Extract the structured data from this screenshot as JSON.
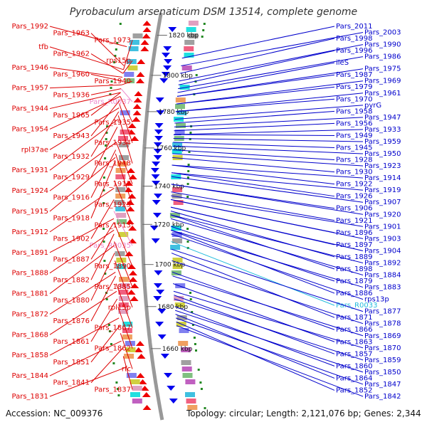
{
  "title": "Pyrobaculum arsenaticum DSM 13514, complete genome",
  "footer": {
    "accession": "Accession: NC_009376",
    "summary": "Topology: circular; Length: 2,121,076 bp; Genes: 2,344"
  },
  "colors": {
    "left_label": "#dd0000",
    "right_label": "#0000cc",
    "rna_left": "#ee88cc",
    "rna_right": "#22bbdd",
    "backbone": "#999999",
    "forward_arrow": "#ee0000",
    "reverse_arrow": "#0000ee",
    "tick_dot": "#228822"
  },
  "kbp_markers": [
    {
      "label": "1820 kbp",
      "pos": 0.04
    },
    {
      "label": "1800 kbp",
      "pos": 0.145
    },
    {
      "label": "1780 kbp",
      "pos": 0.24
    },
    {
      "label": "1760 kbp",
      "pos": 0.335
    },
    {
      "label": "1740 kbp",
      "pos": 0.435
    },
    {
      "label": "1720 kbp",
      "pos": 0.535
    },
    {
      "label": "1700 kbp",
      "pos": 0.64
    },
    {
      "label": "1680 kbp",
      "pos": 0.75
    },
    {
      "label": "1660 kbp",
      "pos": 0.86
    }
  ],
  "left_genes": [
    {
      "name": "Pars_1992",
      "t": 0.07,
      "type": "gene"
    },
    {
      "name": "Pars_1963",
      "t": 0.12,
      "type": "gene"
    },
    {
      "name": "Pars_1973",
      "t": 0.13,
      "type": "gene"
    },
    {
      "name": "tfb",
      "t": 0.13,
      "type": "gene"
    },
    {
      "name": "Pars_1962",
      "t": 0.14,
      "type": "gene"
    },
    {
      "name": "rps15p",
      "t": 0.14,
      "type": "gene"
    },
    {
      "name": "Pars_1946",
      "t": 0.15,
      "type": "gene"
    },
    {
      "name": "Pars_1960",
      "t": 0.16,
      "type": "gene"
    },
    {
      "name": "Pars_1940",
      "t": 0.17,
      "type": "gene"
    },
    {
      "name": "Pars_1957",
      "t": 0.17,
      "type": "gene"
    },
    {
      "name": "Pars_1936",
      "t": 0.18,
      "type": "gene"
    },
    {
      "name": "Pars_R0037",
      "t": 0.18,
      "type": "rna"
    },
    {
      "name": "Pars_1944",
      "t": 0.19,
      "type": "gene"
    },
    {
      "name": "Pars_1965",
      "t": 0.19,
      "type": "gene"
    },
    {
      "name": "Pars_1935",
      "t": 0.2,
      "type": "gene"
    },
    {
      "name": "Pars_1954",
      "t": 0.2,
      "type": "gene"
    },
    {
      "name": "Pars_1943",
      "t": 0.21,
      "type": "gene"
    },
    {
      "name": "Pars_1934",
      "t": 0.22,
      "type": "gene"
    },
    {
      "name": "rpl37ae",
      "t": 0.23,
      "type": "gene"
    },
    {
      "name": "Pars_1932",
      "t": 0.24,
      "type": "gene"
    },
    {
      "name": "Pars_1948",
      "t": 0.25,
      "type": "gene"
    },
    {
      "name": "Pars_1931",
      "t": 0.26,
      "type": "gene"
    },
    {
      "name": "Pars_1929",
      "t": 0.28,
      "type": "gene"
    },
    {
      "name": "Pars_1917",
      "t": 0.32,
      "type": "gene"
    },
    {
      "name": "Pars_1924",
      "t": 0.32,
      "type": "gene"
    },
    {
      "name": "Pars_1916",
      "t": 0.34,
      "type": "gene"
    },
    {
      "name": "Pars_1925",
      "t": 0.35,
      "type": "gene"
    },
    {
      "name": "Pars_1915",
      "t": 0.36,
      "type": "gene"
    },
    {
      "name": "Pars_1918",
      "t": 0.37,
      "type": "gene"
    },
    {
      "name": "Pars_1913",
      "t": 0.42,
      "type": "gene"
    },
    {
      "name": "Pars_1912",
      "t": 0.44,
      "type": "gene"
    },
    {
      "name": "Pars_1902",
      "t": 0.47,
      "type": "gene"
    },
    {
      "name": "Pars_R0035",
      "t": 0.5,
      "type": "rna"
    },
    {
      "name": "Pars_1891",
      "t": 0.52,
      "type": "gene"
    },
    {
      "name": "Pars_1887",
      "t": 0.53,
      "type": "gene"
    },
    {
      "name": "Pars_1890",
      "t": 0.53,
      "type": "gene"
    },
    {
      "name": "Pars_1888",
      "t": 0.55,
      "type": "gene"
    },
    {
      "name": "Pars_1882",
      "t": 0.56,
      "type": "gene"
    },
    {
      "name": "Pars_1885",
      "t": 0.58,
      "type": "gene"
    },
    {
      "name": "Pars_1881",
      "t": 0.59,
      "type": "gene"
    },
    {
      "name": "Pars_1880",
      "t": 0.61,
      "type": "gene"
    },
    {
      "name": "rpl15p",
      "t": 0.63,
      "type": "gene"
    },
    {
      "name": "Pars_1872",
      "t": 0.66,
      "type": "gene"
    },
    {
      "name": "Pars_1876",
      "t": 0.67,
      "type": "gene"
    },
    {
      "name": "Pars_1867",
      "t": 0.69,
      "type": "gene"
    },
    {
      "name": "Pars_1868",
      "t": 0.71,
      "type": "gene"
    },
    {
      "name": "Pars_1861",
      "t": 0.73,
      "type": "gene"
    },
    {
      "name": "Pars_1862",
      "t": 0.75,
      "type": "gene"
    },
    {
      "name": "Pars_1858",
      "t": 0.78,
      "type": "gene"
    },
    {
      "name": "Pars_1851",
      "t": 0.8,
      "type": "gene"
    },
    {
      "name": "rfc",
      "t": 0.82,
      "type": "gene"
    },
    {
      "name": "Pars_1844",
      "t": 0.84,
      "type": "gene"
    },
    {
      "name": "Pars_1841",
      "t": 0.86,
      "type": "gene"
    },
    {
      "name": "Pars_1837",
      "t": 0.88,
      "type": "gene"
    },
    {
      "name": "Pars_1831",
      "t": 0.91,
      "type": "gene"
    }
  ],
  "right_genes": [
    {
      "name": "Pars_2011",
      "t": 0.1,
      "type": "gene"
    },
    {
      "name": "Pars_2003",
      "t": 0.12,
      "type": "gene"
    },
    {
      "name": "Pars_1998",
      "t": 0.14,
      "type": "gene"
    },
    {
      "name": "Pars_1990",
      "t": 0.16,
      "type": "gene"
    },
    {
      "name": "Pars_1996",
      "t": 0.17,
      "type": "gene"
    },
    {
      "name": "Pars_1986",
      "t": 0.18,
      "type": "gene"
    },
    {
      "name": "ileS",
      "t": 0.19,
      "type": "gene"
    },
    {
      "name": "Pars_1975",
      "t": 0.2,
      "type": "gene"
    },
    {
      "name": "Pars_1987",
      "t": 0.2,
      "type": "gene"
    },
    {
      "name": "Pars_1969",
      "t": 0.22,
      "type": "gene"
    },
    {
      "name": "Pars_1979",
      "t": 0.22,
      "type": "gene"
    },
    {
      "name": "Pars_1961",
      "t": 0.24,
      "type": "gene"
    },
    {
      "name": "Pars_1970",
      "t": 0.24,
      "type": "gene"
    },
    {
      "name": "pyrG",
      "t": 0.26,
      "type": "gene"
    },
    {
      "name": "Pars_1958",
      "t": 0.27,
      "type": "gene"
    },
    {
      "name": "Pars_1947",
      "t": 0.28,
      "type": "gene"
    },
    {
      "name": "Pars_1956",
      "t": 0.29,
      "type": "gene"
    },
    {
      "name": "Pars_1933",
      "t": 0.3,
      "type": "gene"
    },
    {
      "name": "Pars_1949",
      "t": 0.3,
      "type": "gene"
    },
    {
      "name": "Pars_1959",
      "t": 0.31,
      "type": "gene"
    },
    {
      "name": "Pars_1945",
      "t": 0.32,
      "type": "gene"
    },
    {
      "name": "Pars_1950",
      "t": 0.33,
      "type": "gene"
    },
    {
      "name": "Pars_1928",
      "t": 0.34,
      "type": "gene"
    },
    {
      "name": "Pars_1923",
      "t": 0.35,
      "type": "gene"
    },
    {
      "name": "Pars_1930",
      "t": 0.36,
      "type": "gene"
    },
    {
      "name": "Pars_1914",
      "t": 0.38,
      "type": "gene"
    },
    {
      "name": "Pars_1922",
      "t": 0.38,
      "type": "gene"
    },
    {
      "name": "Pars_1919",
      "t": 0.4,
      "type": "gene"
    },
    {
      "name": "Pars_1926",
      "t": 0.4,
      "type": "gene"
    },
    {
      "name": "Pars_1907",
      "t": 0.41,
      "type": "gene"
    },
    {
      "name": "Pars_1906",
      "t": 0.43,
      "type": "gene"
    },
    {
      "name": "Pars_1920",
      "t": 0.43,
      "type": "gene"
    },
    {
      "name": "Pars_1921",
      "t": 0.45,
      "type": "gene"
    },
    {
      "name": "Pars_1901",
      "t": 0.46,
      "type": "gene"
    },
    {
      "name": "Pars_1896",
      "t": 0.47,
      "type": "gene"
    },
    {
      "name": "Pars_1903",
      "t": 0.47,
      "type": "gene"
    },
    {
      "name": "Pars_1897",
      "t": 0.49,
      "type": "gene"
    },
    {
      "name": "Pars_1904",
      "t": 0.49,
      "type": "gene"
    },
    {
      "name": "Pars_1889",
      "t": 0.5,
      "type": "gene"
    },
    {
      "name": "Pars_1892",
      "t": 0.51,
      "type": "gene"
    },
    {
      "name": "Pars_1898",
      "t": 0.51,
      "type": "gene"
    },
    {
      "name": "Pars_1884",
      "t": 0.52,
      "type": "gene"
    },
    {
      "name": "Pars_1879",
      "t": 0.54,
      "type": "gene"
    },
    {
      "name": "Pars_1883",
      "t": 0.55,
      "type": "gene"
    },
    {
      "name": "Pars_1886",
      "t": 0.55,
      "type": "gene"
    },
    {
      "name": "rps13p",
      "t": 0.56,
      "type": "gene"
    },
    {
      "name": "Pars_R0033",
      "t": 0.58,
      "type": "rna"
    },
    {
      "name": "Pars_1877",
      "t": 0.6,
      "type": "gene"
    },
    {
      "name": "Pars_1871",
      "t": 0.61,
      "type": "gene"
    },
    {
      "name": "Pars_1878",
      "t": 0.63,
      "type": "gene"
    },
    {
      "name": "Pars_1866",
      "t": 0.66,
      "type": "gene"
    },
    {
      "name": "Pars_1869",
      "t": 0.67,
      "type": "gene"
    },
    {
      "name": "Pars_1863",
      "t": 0.69,
      "type": "gene"
    },
    {
      "name": "Pars_1870",
      "t": 0.71,
      "type": "gene"
    },
    {
      "name": "Pars_1857",
      "t": 0.72,
      "type": "gene"
    },
    {
      "name": "Pars_1859",
      "t": 0.73,
      "type": "gene"
    },
    {
      "name": "Pars_1860",
      "t": 0.75,
      "type": "gene"
    },
    {
      "name": "Pars_1850",
      "t": 0.76,
      "type": "gene"
    },
    {
      "name": "Pars_1864",
      "t": 0.77,
      "type": "gene"
    },
    {
      "name": "Pars_1847",
      "t": 0.78,
      "type": "gene"
    },
    {
      "name": "Pars_1852",
      "t": 0.79,
      "type": "gene"
    },
    {
      "name": "Pars_1842",
      "t": 0.8,
      "type": "gene"
    }
  ]
}
